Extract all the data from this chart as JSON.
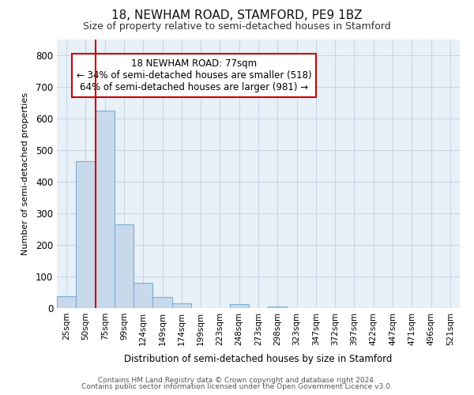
{
  "title": "18, NEWHAM ROAD, STAMFORD, PE9 1BZ",
  "subtitle": "Size of property relative to semi-detached houses in Stamford",
  "xlabel": "Distribution of semi-detached houses by size in Stamford",
  "ylabel": "Number of semi-detached properties",
  "categories": [
    "25sqm",
    "50sqm",
    "75sqm",
    "99sqm",
    "124sqm",
    "149sqm",
    "174sqm",
    "199sqm",
    "223sqm",
    "248sqm",
    "273sqm",
    "298sqm",
    "323sqm",
    "347sqm",
    "372sqm",
    "397sqm",
    "422sqm",
    "447sqm",
    "471sqm",
    "496sqm",
    "521sqm"
  ],
  "values": [
    38,
    465,
    625,
    265,
    80,
    35,
    15,
    0,
    0,
    12,
    0,
    5,
    0,
    0,
    0,
    0,
    0,
    0,
    0,
    0,
    0
  ],
  "bar_color": "#c8d9ec",
  "bar_edge_color": "#7bafd4",
  "property_line_color": "#cc0000",
  "annotation_line1": "18 NEWHAM ROAD: 77sqm",
  "annotation_line2": "← 34% of semi-detached houses are smaller (518)",
  "annotation_line3": "64% of semi-detached houses are larger (981) →",
  "annotation_box_color": "#ffffff",
  "annotation_box_edge": "#cc0000",
  "ylim": [
    0,
    850
  ],
  "yticks": [
    0,
    100,
    200,
    300,
    400,
    500,
    600,
    700,
    800
  ],
  "footer1": "Contains HM Land Registry data © Crown copyright and database right 2024.",
  "footer2": "Contains public sector information licensed under the Open Government Licence v3.0.",
  "background_color": "#e8f0f8",
  "grid_color": "#c0cfe0",
  "title_fontsize": 11,
  "subtitle_fontsize": 9,
  "annotation_fontsize": 8.5
}
